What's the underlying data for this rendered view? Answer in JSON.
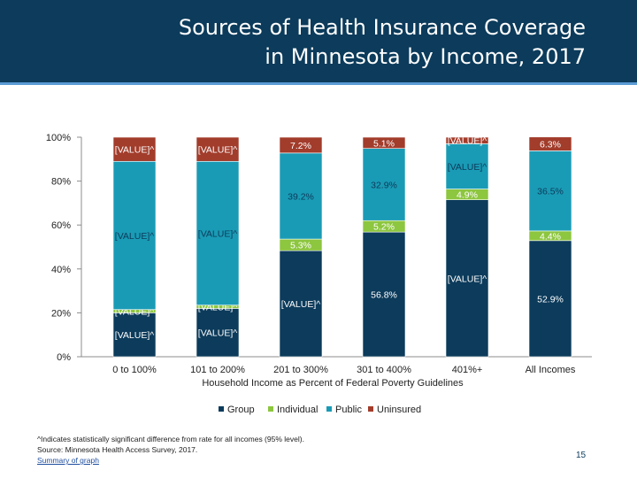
{
  "title": {
    "line1": "Sources of Health Insurance Coverage",
    "line2": "in Minnesota by Income, 2017"
  },
  "chart_data": {
    "type": "bar",
    "stacked": true,
    "xlabel": "Household Income as Percent of Federal Poverty Guidelines",
    "ylabel": "",
    "ylim": [
      0,
      100
    ],
    "yticks": [
      "0%",
      "20%",
      "40%",
      "60%",
      "80%",
      "100%"
    ],
    "categories": [
      "0 to 100%",
      "101 to 200%",
      "201 to 300%",
      "301 to 400%",
      "401%+",
      "All Incomes"
    ],
    "series": [
      {
        "name": "Group",
        "color": "#0c3b5b",
        "values": [
          20.0,
          22.0,
          48.3,
          56.8,
          71.5,
          52.9
        ],
        "labels": [
          "[VALUE]^",
          "[VALUE]^",
          "[VALUE]^",
          "56.8%",
          "[VALUE]^",
          "52.9%"
        ]
      },
      {
        "name": "Individual",
        "color": "#8dc63f",
        "values": [
          1.5,
          1.5,
          5.3,
          5.2,
          4.9,
          4.4
        ],
        "labels": [
          "[VALUE]^",
          "[VALUE]^",
          "5.3%",
          "5.2%",
          "4.9%",
          "4.4%"
        ]
      },
      {
        "name": "Public",
        "color": "#1a9bb5",
        "values": [
          67.5,
          65.5,
          39.2,
          32.9,
          20.6,
          36.5
        ],
        "labels": [
          "[VALUE]^",
          "[VALUE]^",
          "39.2%",
          "32.9%",
          "[VALUE]^",
          "36.5%"
        ]
      },
      {
        "name": "Uninsured",
        "color": "#a23c2b",
        "values": [
          11.0,
          11.0,
          7.2,
          5.1,
          3.0,
          6.3
        ],
        "labels": [
          "[VALUE]^",
          "[VALUE]^",
          "7.2%",
          "5.1%",
          "[VALUE]^",
          "6.3%"
        ]
      }
    ],
    "legend": [
      "Group",
      "Individual",
      "Public",
      "Uninsured"
    ],
    "legend_position": "bottom"
  },
  "notes": {
    "flag": "^Indicates statistically significant difference from rate for all incomes (95% level).",
    "source": "Source: Minnesota Health Access Survey, 2017.",
    "link": "Summary of graph"
  },
  "page_number": "15"
}
